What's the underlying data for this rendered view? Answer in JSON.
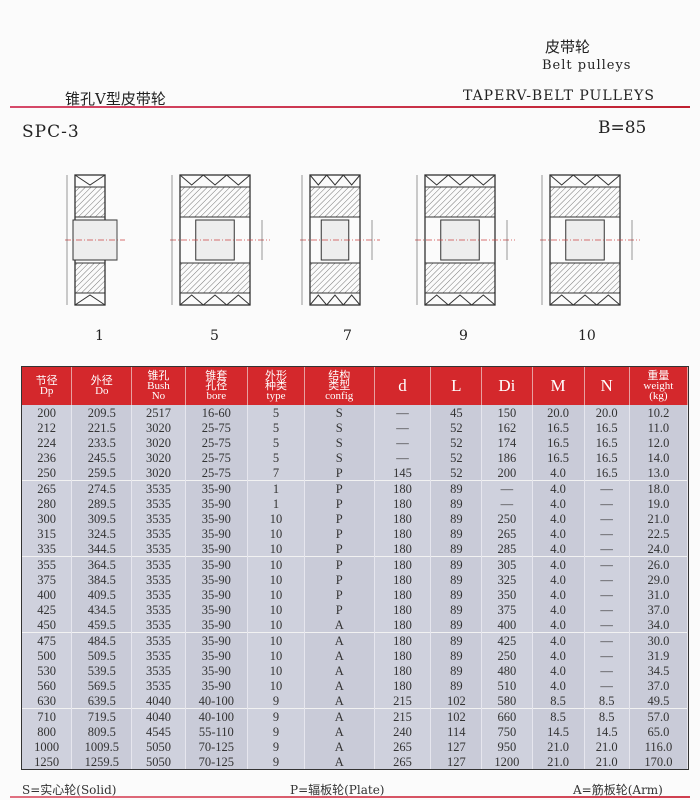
{
  "header": {
    "cn_title": "皮带轮",
    "en_title": "Belt pulleys",
    "left_title": "锥孔V型皮带轮",
    "right_title": "TAPERV-BELT PULLEYS",
    "model": "SPC-3",
    "belt_width": "B=85"
  },
  "figures": [
    {
      "label": "1"
    },
    {
      "label": "5"
    },
    {
      "label": "7"
    },
    {
      "label": "9"
    },
    {
      "label": "10"
    }
  ],
  "table": {
    "columns": [
      [
        "节径",
        "Dp"
      ],
      [
        "外径",
        "Do"
      ],
      [
        "锥孔",
        "Bush",
        "No"
      ],
      [
        "锥套",
        "孔径",
        "bore"
      ],
      [
        "外形",
        "种类",
        "type"
      ],
      [
        "结构",
        "类型",
        "config"
      ],
      [
        "d"
      ],
      [
        "L"
      ],
      [
        "Di"
      ],
      [
        "M"
      ],
      [
        "N"
      ],
      [
        "重量",
        "weight",
        "(kg)"
      ]
    ],
    "rows": [
      [
        "200",
        "209.5",
        "2517",
        "16-60",
        "5",
        "S",
        "—",
        "45",
        "150",
        "20.0",
        "20.0",
        "10.2"
      ],
      [
        "212",
        "221.5",
        "3020",
        "25-75",
        "5",
        "S",
        "—",
        "52",
        "162",
        "16.5",
        "16.5",
        "11.0"
      ],
      [
        "224",
        "233.5",
        "3020",
        "25-75",
        "5",
        "S",
        "—",
        "52",
        "174",
        "16.5",
        "16.5",
        "12.0"
      ],
      [
        "236",
        "245.5",
        "3020",
        "25-75",
        "5",
        "S",
        "—",
        "52",
        "186",
        "16.5",
        "16.5",
        "14.0"
      ],
      [
        "250",
        "259.5",
        "3020",
        "25-75",
        "7",
        "P",
        "145",
        "52",
        "200",
        "4.0",
        "16.5",
        "13.0"
      ],
      [
        "265",
        "274.5",
        "3535",
        "35-90",
        "1",
        "P",
        "180",
        "89",
        "—",
        "4.0",
        "—",
        "18.0"
      ],
      [
        "280",
        "289.5",
        "3535",
        "35-90",
        "1",
        "P",
        "180",
        "89",
        "—",
        "4.0",
        "—",
        "19.0"
      ],
      [
        "300",
        "309.5",
        "3535",
        "35-90",
        "10",
        "P",
        "180",
        "89",
        "250",
        "4.0",
        "—",
        "21.0"
      ],
      [
        "315",
        "324.5",
        "3535",
        "35-90",
        "10",
        "P",
        "180",
        "89",
        "265",
        "4.0",
        "—",
        "22.5"
      ],
      [
        "335",
        "344.5",
        "3535",
        "35-90",
        "10",
        "P",
        "180",
        "89",
        "285",
        "4.0",
        "—",
        "24.0"
      ],
      [
        "355",
        "364.5",
        "3535",
        "35-90",
        "10",
        "P",
        "180",
        "89",
        "305",
        "4.0",
        "—",
        "26.0"
      ],
      [
        "375",
        "384.5",
        "3535",
        "35-90",
        "10",
        "P",
        "180",
        "89",
        "325",
        "4.0",
        "—",
        "29.0"
      ],
      [
        "400",
        "409.5",
        "3535",
        "35-90",
        "10",
        "P",
        "180",
        "89",
        "350",
        "4.0",
        "—",
        "31.0"
      ],
      [
        "425",
        "434.5",
        "3535",
        "35-90",
        "10",
        "P",
        "180",
        "89",
        "375",
        "4.0",
        "—",
        "37.0"
      ],
      [
        "450",
        "459.5",
        "3535",
        "35-90",
        "10",
        "A",
        "180",
        "89",
        "400",
        "4.0",
        "—",
        "34.0"
      ],
      [
        "475",
        "484.5",
        "3535",
        "35-90",
        "10",
        "A",
        "180",
        "89",
        "425",
        "4.0",
        "—",
        "30.0"
      ],
      [
        "500",
        "509.5",
        "3535",
        "35-90",
        "10",
        "A",
        "180",
        "89",
        "250",
        "4.0",
        "—",
        "31.9"
      ],
      [
        "530",
        "539.5",
        "3535",
        "35-90",
        "10",
        "A",
        "180",
        "89",
        "480",
        "4.0",
        "—",
        "34.5"
      ],
      [
        "560",
        "569.5",
        "3535",
        "35-90",
        "10",
        "A",
        "180",
        "89",
        "510",
        "4.0",
        "—",
        "37.0"
      ],
      [
        "630",
        "639.5",
        "4040",
        "40-100",
        "9",
        "A",
        "215",
        "102",
        "580",
        "8.5",
        "8.5",
        "49.5"
      ],
      [
        "710",
        "719.5",
        "4040",
        "40-100",
        "9",
        "A",
        "215",
        "102",
        "660",
        "8.5",
        "8.5",
        "57.0"
      ],
      [
        "800",
        "809.5",
        "4545",
        "55-110",
        "9",
        "A",
        "240",
        "114",
        "750",
        "14.5",
        "14.5",
        "65.0"
      ],
      [
        "1000",
        "1009.5",
        "5050",
        "70-125",
        "9",
        "A",
        "265",
        "127",
        "950",
        "21.0",
        "21.0",
        "116.0"
      ],
      [
        "1250",
        "1259.5",
        "5050",
        "70-125",
        "9",
        "A",
        "265",
        "127",
        "1200",
        "21.0",
        "21.0",
        "170.0"
      ]
    ]
  },
  "footer": {
    "solid": "S=实心轮(Solid)",
    "plate": "P=辐板轮(Plate)",
    "arm": "A=筋板轮(Arm)"
  }
}
